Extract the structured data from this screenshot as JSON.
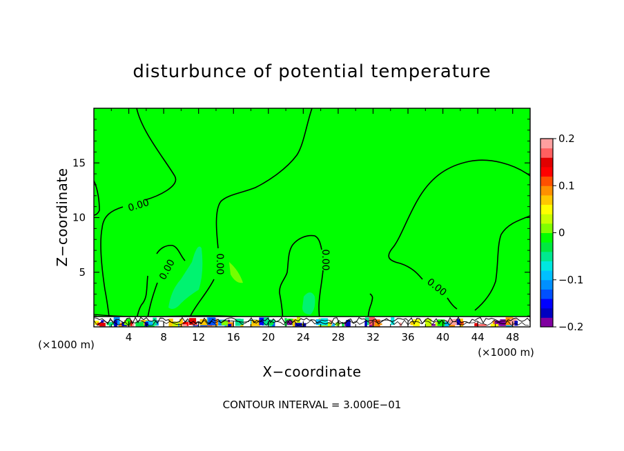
{
  "chart_data": {
    "type": "contour",
    "title": "disturbunce of potential temperature",
    "xlabel": "X−coordinate",
    "ylabel": "Z−coordinate",
    "x_unit": "(×1000 m)",
    "y_unit": "(×1000 m)",
    "xlim": [
      0,
      50
    ],
    "ylim": [
      0,
      20
    ],
    "xticks": [
      4,
      8,
      12,
      16,
      20,
      24,
      28,
      32,
      36,
      40,
      44,
      48
    ],
    "yticks": [
      5,
      10,
      15
    ],
    "background_value": 0.0,
    "contour_interval_text": "CONTOUR INTERVAL = 3.000E−01",
    "contour_labels": [
      "0.00",
      "0.00",
      "0.00",
      "0.00",
      "0.00"
    ],
    "colorbar": {
      "min": -0.2,
      "max": 0.2,
      "tick_values": [
        0.2,
        0.1,
        0,
        -0.1,
        -0.2
      ],
      "tick_labels": [
        "0.2",
        "0.1",
        "0",
        "−0.1",
        "−0.2"
      ],
      "colors": [
        "#8000a0",
        "#0000c0",
        "#0000ff",
        "#0050ff",
        "#0090ff",
        "#00c0ff",
        "#00e8e0",
        "#00e890",
        "#00e840",
        "#00ff00",
        "#80ff00",
        "#c8ff00",
        "#ffff00",
        "#ffc800",
        "#ff9000",
        "#ff5000",
        "#ff0000",
        "#e00000",
        "#ff6060",
        "#ffa0a0"
      ]
    },
    "colors": {
      "field": "#00ff00",
      "weak_negative": "#40f050",
      "negative": "#00e8a8",
      "line": "#000000"
    }
  }
}
